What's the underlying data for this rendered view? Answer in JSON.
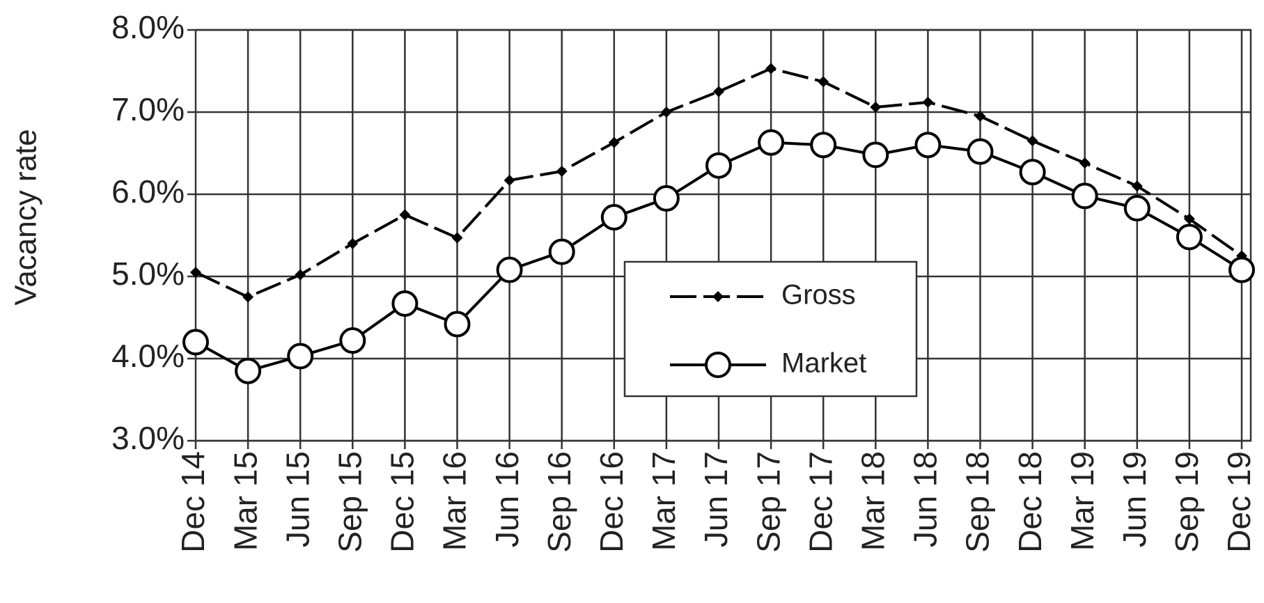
{
  "chart_data": {
    "type": "line",
    "y_label": "Vacancy rate",
    "categories": [
      "Dec 14",
      "Mar 15",
      "Jun 15",
      "Sep 15",
      "Dec 15",
      "Mar 16",
      "Jun 16",
      "Sep 16",
      "Dec 16",
      "Mar 17",
      "Jun 17",
      "Sep 17",
      "Dec 17",
      "Mar 18",
      "Jun 18",
      "Sep 18",
      "Dec 18",
      "Mar 19",
      "Jun 19",
      "Sep 19",
      "Dec 19"
    ],
    "series": [
      {
        "name": "Gross",
        "color": "#000000",
        "marker": "diamond",
        "dashed": true,
        "values": [
          5.05,
          4.75,
          5.02,
          5.4,
          5.75,
          5.47,
          6.17,
          6.28,
          6.63,
          7.0,
          7.25,
          7.53,
          7.37,
          7.06,
          7.12,
          6.95,
          6.65,
          6.38,
          6.1,
          5.7,
          5.25
        ]
      },
      {
        "name": "Market",
        "color": "#000000",
        "marker": "circle",
        "dashed": false,
        "values": [
          4.2,
          3.85,
          4.03,
          4.22,
          4.67,
          4.42,
          5.08,
          5.3,
          5.72,
          5.95,
          6.35,
          6.63,
          6.6,
          6.48,
          6.6,
          6.52,
          6.27,
          5.98,
          5.83,
          5.48,
          5.08
        ]
      }
    ],
    "ylim": [
      3,
      8
    ],
    "yticks": [
      {
        "value": 3,
        "label": "3.0%"
      },
      {
        "value": 4,
        "label": "4.0%"
      },
      {
        "value": 5,
        "label": "5.0%"
      },
      {
        "value": 6,
        "label": "6.0%"
      },
      {
        "value": 7,
        "label": "7.0%"
      },
      {
        "value": 8,
        "label": "8.0%"
      }
    ],
    "grid": true
  }
}
